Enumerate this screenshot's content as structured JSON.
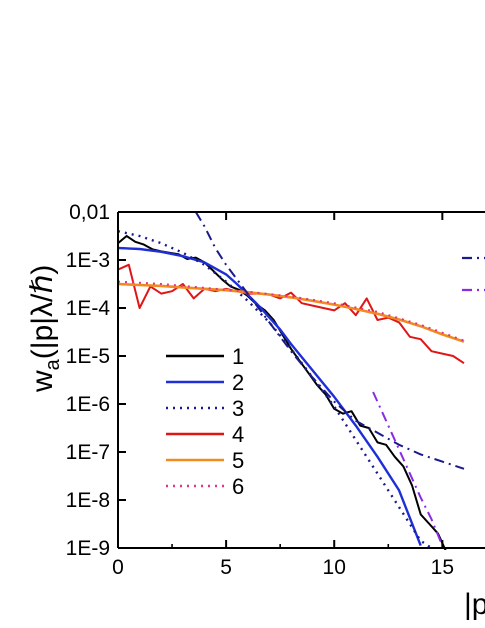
{
  "chart_data": {
    "type": "line",
    "ylabel": "w",
    "ylabel_sub": "a",
    "ylabel_arg": "(|p|λ/ℏ)",
    "xlabel": "|p",
    "xlim": [
      0,
      16
    ],
    "ylim_log10": [
      -9,
      -2
    ],
    "y_scale": "log",
    "x_ticks": [
      0,
      5,
      10,
      15
    ],
    "x_tick_labels": [
      "0",
      "5",
      "10",
      "15"
    ],
    "y_ticks_log10": [
      -2,
      -3,
      -4,
      -5,
      -6,
      -7,
      -8,
      -9
    ],
    "y_tick_labels": [
      "0,01",
      "1E-3",
      "1E-4",
      "1E-5",
      "1E-6",
      "1E-7",
      "1E-8",
      "1E-9"
    ],
    "legend": [
      {
        "label": "1",
        "color": "#000000",
        "dash": "solid"
      },
      {
        "label": "2",
        "color": "#1f2fd6",
        "dash": "solid"
      },
      {
        "label": "3",
        "color": "#1a1a8c",
        "dash": "dot"
      },
      {
        "label": "4",
        "color": "#e01616",
        "dash": "solid"
      },
      {
        "label": "5",
        "color": "#f28a1e",
        "dash": "solid"
      },
      {
        "label": "6",
        "color": "#e0338a",
        "dash": "dot"
      }
    ],
    "series": [
      {
        "name": "1",
        "color": "#000000",
        "dash": "solid",
        "width": 2,
        "x": [
          0,
          0.4,
          0.8,
          1.2,
          1.6,
          2,
          2.4,
          2.8,
          3.2,
          3.6,
          4,
          4.4,
          4.8,
          5.2,
          5.6,
          6,
          6.4,
          6.8,
          7.2,
          7.6,
          8,
          8.4,
          8.8,
          9.2,
          9.6,
          10,
          10.4,
          10.8,
          11.2,
          11.6,
          12,
          12.4,
          12.8,
          13.2,
          13.6,
          14,
          14.4,
          14.8,
          15.2
        ],
        "y": [
          -2.65,
          -2.5,
          -2.62,
          -2.68,
          -2.78,
          -2.82,
          -2.85,
          -2.88,
          -2.98,
          -2.95,
          -3.05,
          -3.22,
          -3.4,
          -3.55,
          -3.62,
          -3.75,
          -3.92,
          -4.05,
          -4.25,
          -4.55,
          -4.85,
          -5.1,
          -5.35,
          -5.6,
          -5.8,
          -6.1,
          -6.2,
          -6.15,
          -6.45,
          -6.5,
          -6.8,
          -6.85,
          -7.1,
          -7.3,
          -7.7,
          -8.3,
          -8.5,
          -8.7,
          -9.1
        ]
      },
      {
        "name": "2",
        "color": "#1f2fd6",
        "dash": "solid",
        "width": 2.4,
        "x": [
          0,
          1,
          2,
          3,
          4,
          5,
          5.5,
          6,
          6.5,
          7,
          7.5,
          8,
          9,
          10,
          11,
          12,
          13,
          14
        ],
        "y": [
          -2.75,
          -2.77,
          -2.83,
          -2.92,
          -3.05,
          -3.3,
          -3.5,
          -3.72,
          -3.95,
          -4.2,
          -4.45,
          -4.75,
          -5.3,
          -5.85,
          -6.45,
          -7.1,
          -7.8,
          -8.95
        ]
      },
      {
        "name": "3",
        "color": "#1a1a8c",
        "dash": "dot",
        "width": 2.4,
        "x": [
          0,
          1,
          2,
          3,
          4,
          5,
          6,
          7,
          8,
          9,
          10,
          11,
          12,
          13,
          14,
          14.5
        ],
        "y": [
          -2.4,
          -2.5,
          -2.65,
          -2.85,
          -3.1,
          -3.45,
          -3.85,
          -4.3,
          -4.85,
          -5.45,
          -6.05,
          -6.75,
          -7.45,
          -8.15,
          -8.85,
          -9.0
        ]
      },
      {
        "name": "4",
        "color": "#e01616",
        "dash": "solid",
        "width": 2,
        "x": [
          0,
          0.5,
          1,
          1.5,
          2,
          2.5,
          3,
          3.5,
          4,
          4.5,
          5,
          5.5,
          6,
          6.5,
          7,
          7.5,
          8,
          8.5,
          9,
          9.5,
          10,
          10.5,
          11,
          11.5,
          12,
          12.5,
          13,
          13.5,
          14,
          14.5,
          15,
          15.5,
          16
        ],
        "y": [
          -3.2,
          -3.1,
          -4.0,
          -3.55,
          -3.7,
          -3.65,
          -3.5,
          -3.8,
          -3.6,
          -3.65,
          -3.6,
          -3.65,
          -3.7,
          -3.7,
          -3.72,
          -3.8,
          -3.68,
          -3.9,
          -3.95,
          -4.0,
          -4.05,
          -3.9,
          -4.15,
          -3.8,
          -4.25,
          -4.2,
          -4.3,
          -4.6,
          -4.65,
          -4.9,
          -4.95,
          -5.0,
          -5.15
        ]
      },
      {
        "name": "5",
        "color": "#f28a1e",
        "dash": "solid",
        "width": 2.6,
        "x": [
          0,
          1,
          2,
          3,
          4,
          5,
          6,
          7,
          8,
          9,
          10,
          11,
          12,
          13,
          14,
          15,
          16
        ],
        "y": [
          -3.5,
          -3.52,
          -3.54,
          -3.57,
          -3.6,
          -3.63,
          -3.67,
          -3.72,
          -3.78,
          -3.85,
          -3.93,
          -4.02,
          -4.12,
          -4.24,
          -4.38,
          -4.55,
          -4.7
        ]
      },
      {
        "name": "6",
        "color": "#e0338a",
        "dash": "dot",
        "width": 2,
        "x": [
          0,
          2,
          4,
          6,
          8,
          10,
          12,
          14,
          16
        ],
        "y": [
          -3.45,
          -3.5,
          -3.58,
          -3.66,
          -3.76,
          -3.9,
          -4.08,
          -4.35,
          -4.68
        ]
      },
      {
        "name": "",
        "color": "#1a1a8c",
        "dash": "dashdot",
        "width": 2,
        "x": [
          3.6,
          4,
          4.5,
          5,
          5.5,
          6,
          6.5,
          7,
          7.5,
          8,
          9,
          10,
          11,
          12,
          13,
          14,
          15,
          16
        ],
        "y": [
          -2.0,
          -2.3,
          -2.75,
          -3.1,
          -3.4,
          -3.7,
          -4.0,
          -4.3,
          -4.6,
          -4.9,
          -5.45,
          -5.95,
          -6.35,
          -6.6,
          -6.85,
          -7.05,
          -7.2,
          -7.35
        ]
      },
      {
        "name": "",
        "color": "#8a2be2",
        "dash": "dashdot",
        "width": 2,
        "x": [
          11.8,
          12.5,
          13,
          13.5,
          14,
          14.5,
          15
        ],
        "y": [
          -5.75,
          -6.45,
          -6.95,
          -7.45,
          -7.95,
          -8.4,
          -8.95
        ]
      }
    ],
    "partial_legend_right": [
      {
        "color": "#1a1a8c",
        "dash": "dashdot"
      },
      {
        "color": "#8a2be2",
        "dash": "dashdot"
      }
    ]
  }
}
